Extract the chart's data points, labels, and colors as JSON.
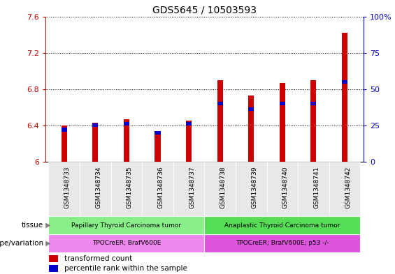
{
  "title": "GDS5645 / 10503593",
  "samples": [
    "GSM1348733",
    "GSM1348734",
    "GSM1348735",
    "GSM1348736",
    "GSM1348737",
    "GSM1348738",
    "GSM1348739",
    "GSM1348740",
    "GSM1348741",
    "GSM1348742"
  ],
  "red_values": [
    6.4,
    6.43,
    6.47,
    6.3,
    6.45,
    6.9,
    6.73,
    6.87,
    6.9,
    7.42
  ],
  "blue_values": [
    22,
    25,
    26,
    20,
    26,
    40,
    36,
    40,
    40,
    55
  ],
  "ylim_left": [
    6.0,
    7.6
  ],
  "ylim_right": [
    0,
    100
  ],
  "yticks_left": [
    6.0,
    6.4,
    6.8,
    7.2,
    7.6
  ],
  "yticks_right": [
    0,
    25,
    50,
    75,
    100
  ],
  "ytick_labels_left": [
    "6",
    "6.4",
    "6.8",
    "7.2",
    "7.6"
  ],
  "ytick_labels_right": [
    "0",
    "25",
    "50",
    "75",
    "100%"
  ],
  "left_axis_color": "#cc0000",
  "right_axis_color": "#0000cc",
  "bar_color_red": "#cc0000",
  "bar_color_blue": "#0000cc",
  "tissue_groups": [
    {
      "label": "Papillary Thyroid Carcinoma tumor",
      "start": 0,
      "end": 5,
      "color": "#88ee88"
    },
    {
      "label": "Anaplastic Thyroid Carcinoma tumor",
      "start": 5,
      "end": 10,
      "color": "#55dd55"
    }
  ],
  "genotype_groups": [
    {
      "label": "TPOCreER; BrafV600E",
      "start": 0,
      "end": 5,
      "color": "#ee88ee"
    },
    {
      "label": "TPOCreER; BrafV600E; p53 -/-",
      "start": 5,
      "end": 10,
      "color": "#dd55dd"
    }
  ],
  "tissue_label": "tissue",
  "genotype_label": "genotype/variation",
  "legend_red": "transformed count",
  "legend_blue": "percentile rank within the sample",
  "red_bar_width": 0.18,
  "blue_bar_width": 0.18,
  "blue_bar_height": 2.5,
  "base_value": 6.0,
  "bg_color": "#e8e8e8",
  "plot_bg": "white"
}
